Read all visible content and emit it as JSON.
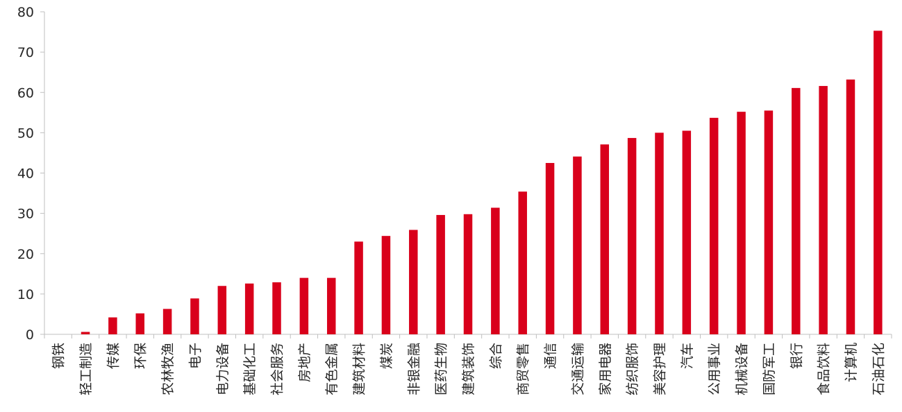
{
  "chart_data": {
    "type": "bar",
    "title": "",
    "xlabel": "",
    "ylabel": "",
    "ylim": [
      0,
      80
    ],
    "yticks": [
      0,
      10,
      20,
      30,
      40,
      50,
      60,
      70,
      80
    ],
    "grid": false,
    "legend": "none",
    "bar_color": "#d9001b",
    "categories": [
      "钢铁",
      "轻工制造",
      "传媒",
      "环保",
      "农林牧渔",
      "电子",
      "电力设备",
      "基础化工",
      "社会服务",
      "房地产",
      "有色金属",
      "建筑材料",
      "煤炭",
      "非银金融",
      "医药生物",
      "建筑装饰",
      "综合",
      "商贸零售",
      "通信",
      "交通运输",
      "家用电器",
      "纺织服饰",
      "美容护理",
      "汽车",
      "公用事业",
      "机械设备",
      "国防军工",
      "银行",
      "食品饮料",
      "计算机",
      "石油石化"
    ],
    "values": [
      0,
      0.6,
      4.2,
      5.2,
      6.3,
      8.9,
      12.0,
      12.6,
      12.9,
      14.0,
      14.0,
      23.0,
      24.4,
      25.9,
      29.6,
      29.8,
      31.4,
      35.4,
      42.5,
      44.1,
      47.1,
      48.7,
      50.0,
      50.5,
      53.7,
      55.2,
      55.5,
      61.1,
      61.6,
      63.2,
      75.3
    ]
  }
}
